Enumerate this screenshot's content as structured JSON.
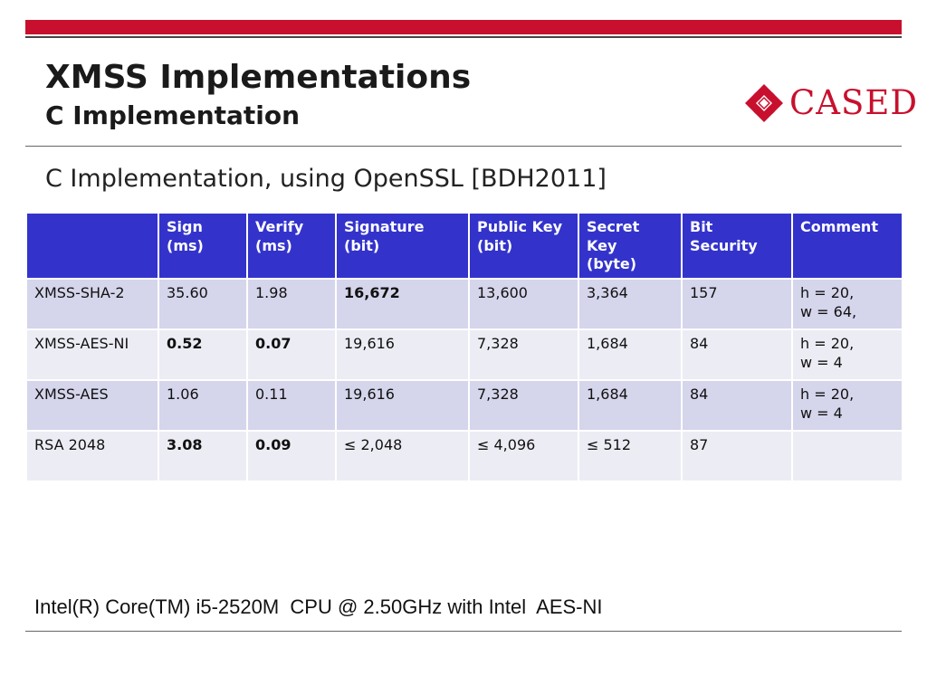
{
  "slide": {
    "title": "XMSS Implementations",
    "subtitle": "C Implementation",
    "lead": "C Implementation, using OpenSSL [BDH2011]",
    "footer": "Intel(R) Core(TM) i5-2520M  CPU @ 2.50GHz with Intel  AES-NI",
    "logo_text": "CASED",
    "brand_color": "#c8102e",
    "header_color": "#3333cc"
  },
  "table": {
    "headers": [
      [
        "",
        ""
      ],
      [
        "Sign",
        "(ms)"
      ],
      [
        "Verify",
        "(ms)"
      ],
      [
        "Signature",
        "(bit)"
      ],
      [
        "Public Key",
        "(bit)"
      ],
      [
        "Secret",
        "Key",
        "(byte)"
      ],
      [
        "Bit",
        "Security"
      ],
      [
        "Comment"
      ]
    ],
    "rows": [
      [
        "XMSS-SHA-2",
        "35.60",
        "1.98",
        "16,672",
        "13,600",
        "3,364",
        "157",
        [
          "h = 20,",
          "w = 64,"
        ]
      ],
      [
        "XMSS-AES-NI",
        "0.52",
        "0.07",
        "19,616",
        "7,328",
        "1,684",
        "84",
        [
          "h = 20,",
          "w = 4"
        ]
      ],
      [
        "XMSS-AES",
        "1.06",
        "0.11",
        "19,616",
        "7,328",
        "1,684",
        "84",
        [
          "h = 20,",
          "w = 4"
        ]
      ],
      [
        "RSA 2048",
        "3.08",
        "0.09",
        "≤ 2,048",
        "≤ 4,096",
        "≤ 512",
        "87",
        []
      ]
    ]
  }
}
